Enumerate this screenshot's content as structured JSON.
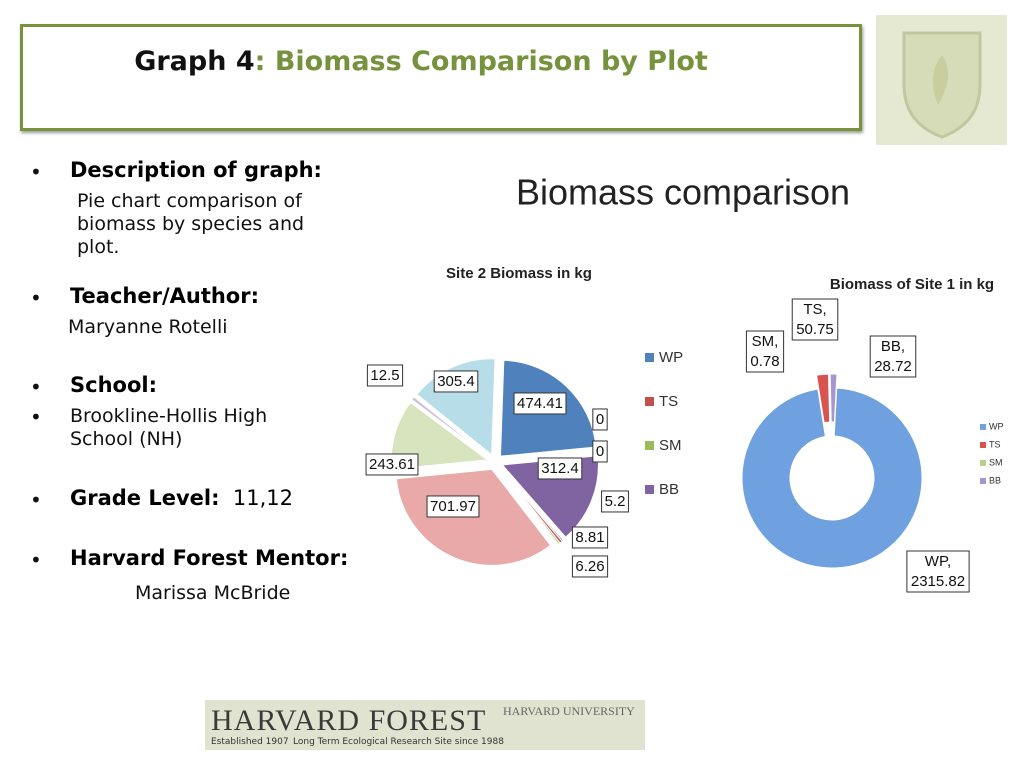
{
  "header": {
    "title_lead": "Graph 4",
    "title_rest": ": Biomass Comparison by Plot"
  },
  "sidebar": {
    "description_label": "Description of graph:",
    "description": "Pie chart comparison  of biomass by species and plot.",
    "teacher_label": "Teacher/Author:",
    "teacher": "Maryanne Rotelli",
    "school_label": "School:",
    "school": "Brookline-Hollis High School (NH)",
    "grade_label": "Grade Level:",
    "grade": "11,12",
    "mentor_label": "Harvard Forest Mentor:",
    "mentor": "Marissa McBride"
  },
  "figure_title": "Biomass comparison",
  "footer": {
    "logo_title": "HARVARD FOREST",
    "university": "HARVARD UNIVERSITY",
    "established": "Established 1907",
    "ltr": "Long Term Ecological Research Site since 1988"
  },
  "chart_data": [
    {
      "type": "pie",
      "title": "Site 2 Biomass in kg",
      "values": [
        474.41,
        0,
        0,
        312.4,
        5.2,
        8.81,
        6.26,
        701.97,
        243.61,
        12.5,
        305.4
      ],
      "colors": [
        "#4f81bd",
        "#c0504d",
        "#9bbb59",
        "#8064a2",
        "#4f81bd",
        "#c0504d",
        "#9bbb59",
        "#e8a9a8",
        "#d7e4bd",
        "#ccc1da",
        "#b7dee8"
      ],
      "legend": {
        "labels": [
          "WP",
          "TS",
          "SM",
          "BB"
        ],
        "colors": [
          "#4f81bd",
          "#c0504d",
          "#9bbb59",
          "#8064a2"
        ]
      }
    },
    {
      "type": "donut",
      "title": "Biomass of Site 1 in kg",
      "categories": [
        "WP",
        "TS",
        "SM",
        "BB"
      ],
      "values": [
        2315.82,
        50.75,
        0.78,
        28.72
      ],
      "value_labels": [
        "WP, 2315.82",
        "TS, 50.75",
        "SM, 0.78",
        "BB, 28.72"
      ],
      "colors": [
        "#6fa0e0",
        "#d9534f",
        "#b5d28c",
        "#a795d0"
      ]
    }
  ]
}
